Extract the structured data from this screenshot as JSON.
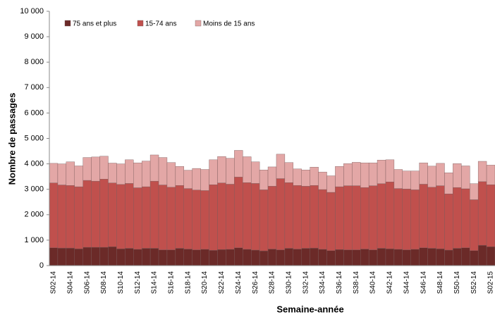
{
  "chart_data": {
    "type": "stacked-bar",
    "x_label": "Semaine-année",
    "y_label": "Nombre de passages",
    "categories": [
      "S02-14",
      null,
      "S04-14",
      null,
      "S06-14",
      null,
      "S08-14",
      null,
      "S10-14",
      null,
      "S12-14",
      null,
      "S14-14",
      null,
      "S16-14",
      null,
      "S18-14",
      null,
      "S20-14",
      null,
      "S22-14",
      null,
      "S24-14",
      null,
      "S26-14",
      null,
      "S28-14",
      null,
      "S30-14",
      null,
      "S32-14",
      null,
      "S34-14",
      null,
      "S36-14",
      null,
      "S38-14",
      null,
      "S40-14",
      null,
      "S42-14",
      null,
      "S44-14",
      null,
      "S46-14",
      null,
      "S48-14",
      null,
      "S50-14",
      null,
      "S52-14",
      null,
      "S02-15"
    ],
    "series": [
      {
        "name": "75 ans et plus",
        "color": "#6b2a28",
        "values": [
          700,
          690,
          690,
          660,
          720,
          720,
          720,
          740,
          660,
          680,
          640,
          680,
          680,
          620,
          620,
          680,
          650,
          620,
          640,
          600,
          630,
          640,
          700,
          640,
          610,
          580,
          650,
          620,
          680,
          650,
          680,
          690,
          640,
          590,
          630,
          620,
          620,
          650,
          620,
          680,
          660,
          640,
          620,
          640,
          700,
          680,
          660,
          610,
          680,
          700,
          590,
          800,
          740
        ]
      },
      {
        "name": "15-74 ans",
        "color": "#c0504d",
        "values": [
          2550,
          2480,
          2460,
          2440,
          2630,
          2600,
          2680,
          2510,
          2530,
          2550,
          2420,
          2420,
          2640,
          2550,
          2460,
          2470,
          2380,
          2350,
          2310,
          2580,
          2620,
          2560,
          2780,
          2620,
          2620,
          2400,
          2470,
          2800,
          2580,
          2500,
          2440,
          2460,
          2350,
          2290,
          2470,
          2520,
          2520,
          2420,
          2520,
          2540,
          2630,
          2390,
          2390,
          2340,
          2500,
          2400,
          2480,
          2210,
          2390,
          2320,
          2000,
          2500,
          2440
        ]
      },
      {
        "name": "Moins de 15 ans",
        "color": "#e3a7a6",
        "values": [
          770,
          830,
          930,
          820,
          900,
          950,
          900,
          780,
          810,
          930,
          980,
          1010,
          1030,
          1080,
          970,
          750,
          720,
          850,
          830,
          980,
          1040,
          1020,
          1050,
          1020,
          850,
          780,
          760,
          960,
          790,
          650,
          640,
          720,
          690,
          650,
          800,
          870,
          920,
          970,
          900,
          930,
          870,
          750,
          710,
          740,
          840,
          830,
          880,
          830,
          940,
          900,
          630,
          800,
          770
        ]
      }
    ],
    "ylim": [
      0,
      10000
    ],
    "yticks": [
      0,
      {
        "value": 1000,
        "label": "1 000"
      },
      {
        "value": 2000,
        "label": "2 000"
      },
      {
        "value": 3000,
        "label": "3 000"
      },
      {
        "value": 4000,
        "label": "4 000"
      },
      {
        "value": 5000,
        "label": "5 000"
      },
      {
        "value": 6000,
        "label": "6 000"
      },
      {
        "value": 7000,
        "label": "7 000"
      },
      {
        "value": 8000,
        "label": "8 000"
      },
      {
        "value": 9000,
        "label": "9 000"
      },
      {
        "value": 10000,
        "label": "10 000"
      }
    ],
    "grid": false,
    "legend": "top-left"
  }
}
